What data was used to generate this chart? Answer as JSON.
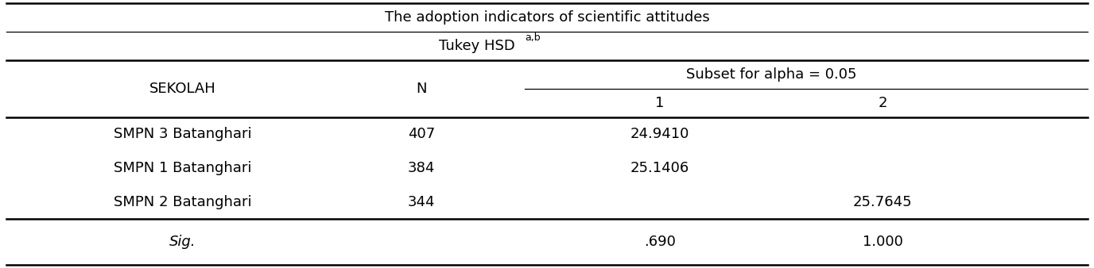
{
  "title": "The adoption indicators of scientific attitudes",
  "subtitle": "Tukey HSD",
  "subtitle_superscript": "a,b",
  "col_header_1": "SEKOLAH",
  "col_header_2": "N",
  "col_header_3": "Subset for alpha = 0.05",
  "sub_col_1": "1",
  "sub_col_2": "2",
  "rows": [
    {
      "sekolah": "SMPN 3 Batanghari",
      "n": "407",
      "s1": "24.9410",
      "s2": ""
    },
    {
      "sekolah": "SMPN 1 Batanghari",
      "n": "384",
      "s1": "25.1406",
      "s2": ""
    },
    {
      "sekolah": "SMPN 2 Batanghari",
      "n": "344",
      "s1": "",
      "s2": "25.7645"
    }
  ],
  "sig_row": {
    "label": "Sig.",
    "s1": ".690",
    "s2": "1.000"
  },
  "bg_color": "#ffffff",
  "text_color": "#000000",
  "line_color": "#000000",
  "font_size": 13,
  "small_font_size": 9
}
